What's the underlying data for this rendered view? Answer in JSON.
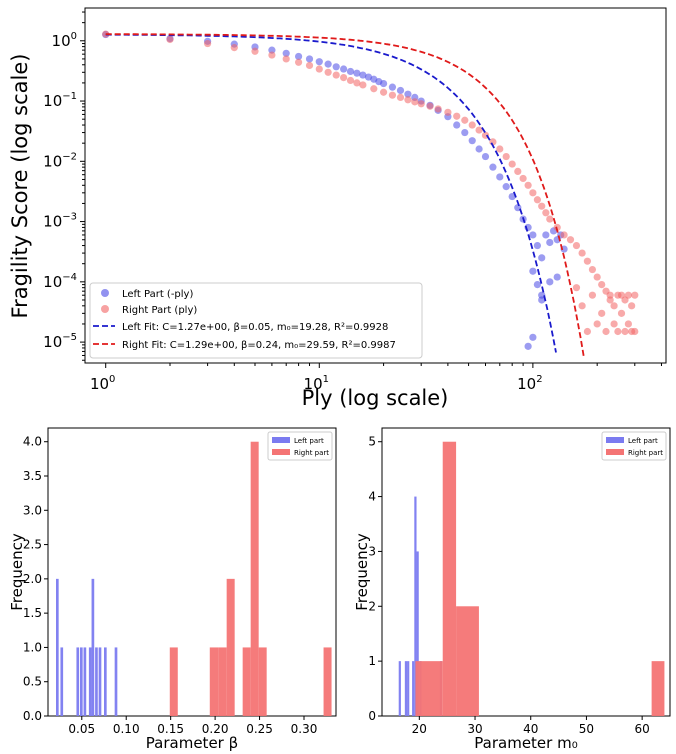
{
  "chart_data": [
    {
      "type": "scatter",
      "xlabel": "Ply (log scale)",
      "ylabel": "Fragility Score (log scale)",
      "xscale": "log",
      "yscale": "log",
      "xlim": [
        0.8,
        420
      ],
      "ylim": [
        4.5e-06,
        3.5
      ],
      "x_ticks": [
        {
          "value": 1,
          "label": "10^0"
        },
        {
          "value": 10,
          "label": "10^1"
        },
        {
          "value": 100,
          "label": "10^2"
        }
      ],
      "y_ticks": [
        {
          "value": 1,
          "label": "10^0"
        },
        {
          "value": 0.1,
          "label": "10^-1"
        },
        {
          "value": 0.01,
          "label": "10^-2"
        },
        {
          "value": 0.001,
          "label": "10^-3"
        },
        {
          "value": 0.0001,
          "label": "10^-4"
        },
        {
          "value": 1e-05,
          "label": "10^-5"
        }
      ],
      "legend_position": "lower-left",
      "series": [
        {
          "name": "Left Part (-ply)",
          "kind": "scatter",
          "color": "#4a4ae6",
          "points": [
            [
              1,
              1.27
            ],
            [
              2,
              1.09
            ],
            [
              3,
              0.98
            ],
            [
              4,
              0.88
            ],
            [
              5,
              0.79
            ],
            [
              6,
              0.7
            ],
            [
              7,
              0.62
            ],
            [
              8,
              0.55
            ],
            [
              9,
              0.5
            ],
            [
              10,
              0.45
            ],
            [
              11,
              0.41
            ],
            [
              12,
              0.37
            ],
            [
              13,
              0.34
            ],
            [
              14,
              0.31
            ],
            [
              15,
              0.29
            ],
            [
              16,
              0.27
            ],
            [
              17,
              0.25
            ],
            [
              18,
              0.23
            ],
            [
              19,
              0.21
            ],
            [
              20,
              0.195
            ],
            [
              22,
              0.17
            ],
            [
              24,
              0.15
            ],
            [
              26,
              0.13
            ],
            [
              28,
              0.115
            ],
            [
              30,
              0.1
            ],
            [
              33,
              0.085
            ],
            [
              36,
              0.07
            ],
            [
              40,
              0.055
            ],
            [
              44,
              0.04
            ],
            [
              48,
              0.03
            ],
            [
              52,
              0.022
            ],
            [
              56,
              0.016
            ],
            [
              60,
              0.012
            ],
            [
              65,
              0.008
            ],
            [
              70,
              0.0055
            ],
            [
              75,
              0.0038
            ],
            [
              80,
              0.0026
            ],
            [
              85,
              0.0017
            ],
            [
              90,
              0.0011
            ],
            [
              95,
              0.0008
            ],
            [
              100,
              0.0006
            ],
            [
              105,
              0.0004
            ],
            [
              110,
              0.00025
            ],
            [
              115,
              0.0006
            ],
            [
              120,
              0.00045
            ],
            [
              125,
              0.0007
            ],
            [
              130,
              0.0005
            ],
            [
              135,
              0.0006
            ],
            [
              140,
              0.00035
            ],
            [
              100,
              0.00015
            ],
            [
              105,
              9e-05
            ],
            [
              110,
              6e-05
            ],
            [
              120,
              0.0001
            ],
            [
              130,
              0.00012
            ],
            [
              100,
              1.2e-05
            ],
            [
              95,
              8.5e-06
            ],
            [
              110,
              5e-05
            ]
          ]
        },
        {
          "name": "Right Part (ply)",
          "kind": "scatter",
          "color": "#f26464",
          "points": [
            [
              1,
              1.29
            ],
            [
              2,
              1.05
            ],
            [
              3,
              0.9
            ],
            [
              4,
              0.77
            ],
            [
              5,
              0.67
            ],
            [
              6,
              0.58
            ],
            [
              7,
              0.5
            ],
            [
              8,
              0.44
            ],
            [
              9,
              0.39
            ],
            [
              10,
              0.34
            ],
            [
              11,
              0.3
            ],
            [
              12,
              0.27
            ],
            [
              13,
              0.245
            ],
            [
              14,
              0.22
            ],
            [
              15,
              0.2
            ],
            [
              16,
              0.185
            ],
            [
              18,
              0.16
            ],
            [
              20,
              0.14
            ],
            [
              22,
              0.125
            ],
            [
              24,
              0.115
            ],
            [
              26,
              0.105
            ],
            [
              28,
              0.097
            ],
            [
              30,
              0.09
            ],
            [
              33,
              0.082
            ],
            [
              36,
              0.074
            ],
            [
              40,
              0.065
            ],
            [
              44,
              0.056
            ],
            [
              48,
              0.048
            ],
            [
              52,
              0.04
            ],
            [
              56,
              0.033
            ],
            [
              60,
              0.027
            ],
            [
              65,
              0.021
            ],
            [
              70,
              0.016
            ],
            [
              75,
              0.012
            ],
            [
              80,
              0.009
            ],
            [
              85,
              0.0068
            ],
            [
              90,
              0.0052
            ],
            [
              95,
              0.004
            ],
            [
              100,
              0.003
            ],
            [
              105,
              0.0023
            ],
            [
              110,
              0.0018
            ],
            [
              115,
              0.0014
            ],
            [
              120,
              0.0011
            ],
            [
              130,
              0.0008
            ],
            [
              140,
              0.0006
            ],
            [
              150,
              0.0005
            ],
            [
              160,
              0.0004
            ],
            [
              170,
              0.0003
            ],
            [
              180,
              0.00022
            ],
            [
              190,
              0.00016
            ],
            [
              200,
              0.00012
            ],
            [
              210,
              9e-05
            ],
            [
              220,
              7e-05
            ],
            [
              230,
              5e-05
            ],
            [
              240,
              4e-05
            ],
            [
              250,
              6e-05
            ],
            [
              260,
              3e-05
            ],
            [
              270,
              5e-05
            ],
            [
              280,
              2e-05
            ],
            [
              290,
              4e-05
            ],
            [
              300,
              1.5e-05
            ],
            [
              160,
              8e-05
            ],
            [
              170,
              4e-05
            ],
            [
              180,
              1.5e-05
            ],
            [
              190,
              6e-05
            ],
            [
              200,
              2e-05
            ],
            [
              210,
              3e-05
            ],
            [
              220,
              1.5e-05
            ],
            [
              230,
              6e-05
            ],
            [
              240,
              2e-05
            ],
            [
              250,
              1.5e-05
            ],
            [
              260,
              6e-05
            ],
            [
              270,
              1.5e-05
            ],
            [
              280,
              6e-05
            ],
            [
              290,
              1.5e-05
            ],
            [
              300,
              6e-05
            ]
          ]
        }
      ],
      "fits": [
        {
          "name": "Left Fit: C=1.27e+00, β=0.05, m₀=19.28, R²=0.9928",
          "color": "#1a1acc",
          "C": 1.27,
          "beta": 0.05,
          "m0": 19.28
        },
        {
          "name": "Right Fit: C=1.29e+00, β=0.24, m₀=29.59, R²=0.9987",
          "color": "#e01a1a",
          "C": 1.29,
          "beta": 0.24,
          "m0": 29.59
        }
      ]
    },
    {
      "type": "bar",
      "xlabel": "Parameter β",
      "ylabel": "Frequency",
      "xlim": [
        0.012,
        0.336
      ],
      "ylim": [
        0,
        4.2
      ],
      "x_ticks": [
        0.05,
        0.1,
        0.15,
        0.2,
        0.25,
        0.3
      ],
      "y_ticks": [
        0.0,
        0.5,
        1.0,
        1.5,
        2.0,
        2.5,
        3.0,
        3.5,
        4.0
      ],
      "legend_position": "top-right",
      "series": [
        {
          "name": "Left part",
          "color": "#7b7bf0",
          "bins": [
            [
              0.021,
              0.024,
              2
            ],
            [
              0.026,
              0.029,
              1
            ],
            [
              0.044,
              0.047,
              1
            ],
            [
              0.048,
              0.051,
              1
            ],
            [
              0.052,
              0.055,
              1
            ],
            [
              0.058,
              0.061,
              1
            ],
            [
              0.061,
              0.064,
              2
            ],
            [
              0.065,
              0.068,
              1
            ],
            [
              0.069,
              0.072,
              1
            ],
            [
              0.075,
              0.078,
              1
            ],
            [
              0.087,
              0.09,
              1
            ]
          ]
        },
        {
          "name": "Right part",
          "color": "#f47474",
          "bins": [
            [
              0.149,
              0.158,
              1
            ],
            [
              0.194,
              0.204,
              1
            ],
            [
              0.204,
              0.213,
              1
            ],
            [
              0.213,
              0.222,
              2
            ],
            [
              0.231,
              0.24,
              1
            ],
            [
              0.24,
              0.249,
              4
            ],
            [
              0.249,
              0.258,
              1
            ],
            [
              0.322,
              0.331,
              1
            ]
          ]
        }
      ]
    },
    {
      "type": "bar",
      "xlabel": "Parameter m₀",
      "ylabel": "Frequency",
      "xlim": [
        13.3,
        65.0
      ],
      "ylim": [
        0,
        5.25
      ],
      "x_ticks": [
        20,
        30,
        40,
        50,
        60
      ],
      "y_ticks": [
        0,
        1,
        2,
        3,
        4,
        5
      ],
      "legend_position": "top-right",
      "series": [
        {
          "name": "Left part",
          "color": "#7b7bf0",
          "bins": [
            [
              16.3,
              16.7,
              1
            ],
            [
              17.4,
              17.8,
              1
            ],
            [
              17.8,
              18.2,
              1
            ],
            [
              18.7,
              19.1,
              1
            ],
            [
              19.1,
              19.5,
              4
            ],
            [
              19.5,
              19.9,
              3
            ],
            [
              20.0,
              20.4,
              1
            ],
            [
              23.7,
              24.1,
              1
            ]
          ]
        },
        {
          "name": "Right part",
          "color": "#f47474",
          "bins": [
            [
              19.3,
              24.2,
              1
            ],
            [
              24.2,
              26.6,
              5
            ],
            [
              26.6,
              30.7,
              2
            ],
            [
              61.7,
              64.0,
              1
            ]
          ]
        }
      ]
    }
  ]
}
